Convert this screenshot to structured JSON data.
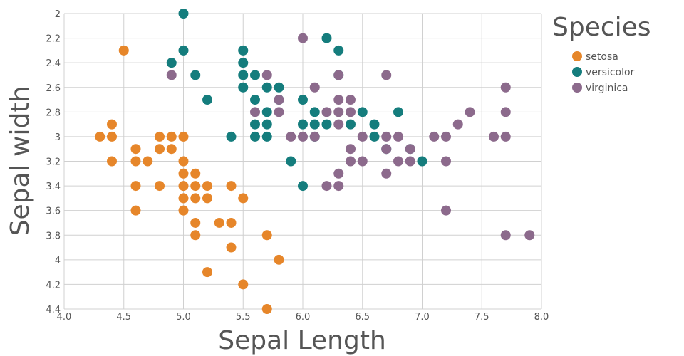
{
  "chart_data": {
    "type": "scatter",
    "xlabel": "Sepal Length",
    "ylabel": "Sepal width",
    "xlim": [
      4.0,
      8.0
    ],
    "ylim": [
      2.0,
      4.4
    ],
    "y_axis_reversed": true,
    "grid": true,
    "x_ticks": [
      "4.0",
      "4.5",
      "5.0",
      "5.5",
      "6.0",
      "6.5",
      "7.0",
      "7.5",
      "8.0"
    ],
    "y_ticks": [
      "2",
      "2.2",
      "2.4",
      "2.6",
      "2.8",
      "3",
      "3.2",
      "3.4",
      "3.6",
      "3.8",
      "4",
      "4.2",
      "4.4"
    ],
    "legend": {
      "title": "Species",
      "placement": "right"
    },
    "series": [
      {
        "name": "setosa",
        "color": "#e6862a",
        "points": [
          [
            4.5,
            2.3
          ],
          [
            4.3,
            3.0
          ],
          [
            4.4,
            3.0
          ],
          [
            4.4,
            2.9
          ],
          [
            4.4,
            3.2
          ],
          [
            4.6,
            3.1
          ],
          [
            4.6,
            3.2
          ],
          [
            4.6,
            3.4
          ],
          [
            4.6,
            3.6
          ],
          [
            4.7,
            3.2
          ],
          [
            4.8,
            3.0
          ],
          [
            4.8,
            3.1
          ],
          [
            4.8,
            3.4
          ],
          [
            4.9,
            3.0
          ],
          [
            4.9,
            3.1
          ],
          [
            5.0,
            3.0
          ],
          [
            5.0,
            3.2
          ],
          [
            5.0,
            3.3
          ],
          [
            5.0,
            3.4
          ],
          [
            5.0,
            3.5
          ],
          [
            5.0,
            3.6
          ],
          [
            5.1,
            3.3
          ],
          [
            5.1,
            3.4
          ],
          [
            5.1,
            3.5
          ],
          [
            5.1,
            3.7
          ],
          [
            5.1,
            3.8
          ],
          [
            5.2,
            3.4
          ],
          [
            5.2,
            3.5
          ],
          [
            5.2,
            4.1
          ],
          [
            5.3,
            3.7
          ],
          [
            5.4,
            3.4
          ],
          [
            5.4,
            3.7
          ],
          [
            5.4,
            3.9
          ],
          [
            5.5,
            3.5
          ],
          [
            5.5,
            4.2
          ],
          [
            5.7,
            3.8
          ],
          [
            5.7,
            4.4
          ],
          [
            5.8,
            4.0
          ]
        ]
      },
      {
        "name": "versicolor",
        "color": "#157d7d",
        "points": [
          [
            5.0,
            2.0
          ],
          [
            5.0,
            2.3
          ],
          [
            4.9,
            2.4
          ],
          [
            5.1,
            2.5
          ],
          [
            5.2,
            2.7
          ],
          [
            5.4,
            3.0
          ],
          [
            5.5,
            2.3
          ],
          [
            5.5,
            2.4
          ],
          [
            5.5,
            2.5
          ],
          [
            5.5,
            2.6
          ],
          [
            5.6,
            2.5
          ],
          [
            5.6,
            2.7
          ],
          [
            5.6,
            2.9
          ],
          [
            5.6,
            3.0
          ],
          [
            5.7,
            2.6
          ],
          [
            5.7,
            2.8
          ],
          [
            5.7,
            2.9
          ],
          [
            5.7,
            3.0
          ],
          [
            5.8,
            2.6
          ],
          [
            5.8,
            2.7
          ],
          [
            5.9,
            3.2
          ],
          [
            6.0,
            2.7
          ],
          [
            6.0,
            2.9
          ],
          [
            6.0,
            3.4
          ],
          [
            6.1,
            2.8
          ],
          [
            6.1,
            2.9
          ],
          [
            6.1,
            3.0
          ],
          [
            6.2,
            2.2
          ],
          [
            6.2,
            2.9
          ],
          [
            6.3,
            2.3
          ],
          [
            6.3,
            2.5
          ],
          [
            6.4,
            2.9
          ],
          [
            6.5,
            2.8
          ],
          [
            6.6,
            2.9
          ],
          [
            6.6,
            3.0
          ],
          [
            6.7,
            3.1
          ],
          [
            6.8,
            2.8
          ],
          [
            6.9,
            3.1
          ],
          [
            7.0,
            3.2
          ]
        ]
      },
      {
        "name": "virginica",
        "color": "#8c6a8c",
        "points": [
          [
            4.9,
            2.5
          ],
          [
            5.7,
            2.5
          ],
          [
            5.6,
            2.8
          ],
          [
            5.8,
            2.7
          ],
          [
            5.8,
            2.8
          ],
          [
            5.9,
            3.0
          ],
          [
            6.0,
            2.2
          ],
          [
            6.0,
            3.0
          ],
          [
            6.1,
            2.6
          ],
          [
            6.1,
            3.0
          ],
          [
            6.2,
            2.8
          ],
          [
            6.2,
            3.4
          ],
          [
            6.3,
            2.5
          ],
          [
            6.3,
            2.7
          ],
          [
            6.3,
            2.8
          ],
          [
            6.3,
            2.9
          ],
          [
            6.3,
            3.3
          ],
          [
            6.3,
            3.4
          ],
          [
            6.4,
            2.7
          ],
          [
            6.4,
            2.8
          ],
          [
            6.4,
            3.1
          ],
          [
            6.4,
            3.2
          ],
          [
            6.5,
            3.0
          ],
          [
            6.5,
            3.2
          ],
          [
            6.7,
            2.5
          ],
          [
            6.7,
            3.0
          ],
          [
            6.7,
            3.1
          ],
          [
            6.7,
            3.3
          ],
          [
            6.8,
            3.0
          ],
          [
            6.8,
            3.2
          ],
          [
            6.9,
            3.1
          ],
          [
            6.9,
            3.2
          ],
          [
            7.1,
            3.0
          ],
          [
            7.2,
            3.0
          ],
          [
            7.2,
            3.2
          ],
          [
            7.2,
            3.6
          ],
          [
            7.3,
            2.9
          ],
          [
            7.4,
            2.8
          ],
          [
            7.6,
            3.0
          ],
          [
            7.7,
            2.6
          ],
          [
            7.7,
            2.8
          ],
          [
            7.7,
            3.0
          ],
          [
            7.7,
            3.8
          ],
          [
            7.9,
            3.8
          ]
        ]
      }
    ]
  }
}
